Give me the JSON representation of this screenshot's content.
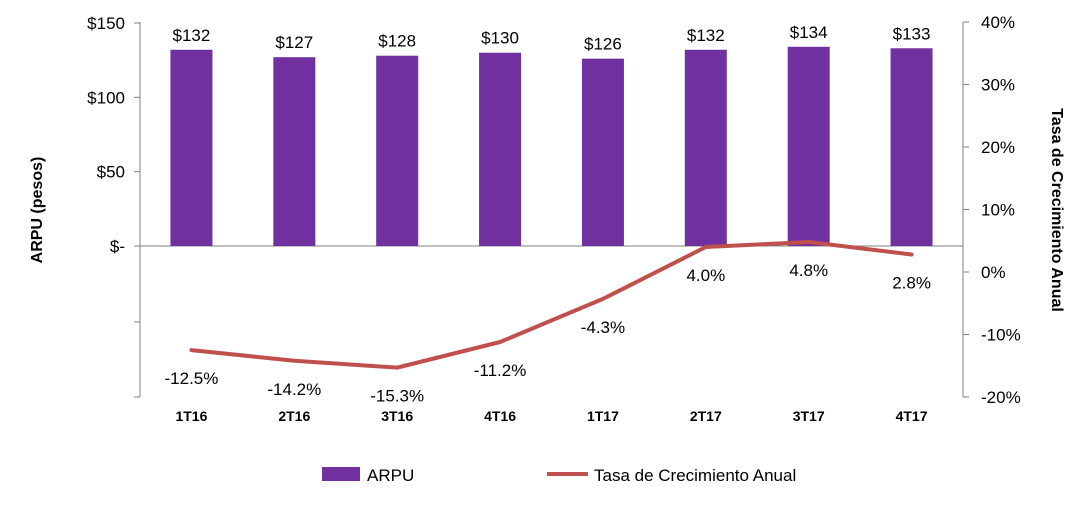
{
  "chart_data": {
    "type": "bar",
    "categories": [
      "1T16",
      "2T16",
      "3T16",
      "4T16",
      "1T17",
      "2T17",
      "3T17",
      "4T17"
    ],
    "series": [
      {
        "name": "ARPU",
        "type": "bar",
        "axis": "left",
        "color": "#7030A0",
        "values": [
          132,
          127,
          128,
          130,
          126,
          132,
          134,
          133
        ],
        "labels": [
          "$132",
          "$127",
          "$128",
          "$130",
          "$126",
          "$132",
          "$134",
          "$133"
        ]
      },
      {
        "name": "Tasa de Crecimiento Anual",
        "type": "line",
        "axis": "right",
        "color": "#C0504D",
        "values": [
          -12.5,
          -14.2,
          -15.3,
          -11.2,
          -4.3,
          4.0,
          4.8,
          2.8
        ],
        "labels": [
          "-12.5%",
          "-14.2%",
          "-15.3%",
          "-11.2%",
          "-4.3%",
          "4.0%",
          "4.8%",
          "2.8%"
        ]
      }
    ],
    "ylabel": "ARPU (pesos)",
    "y2label": "Tasa de Crecimiento Anual",
    "ylim": [
      0,
      150
    ],
    "y2lim": [
      -20,
      40
    ],
    "yticks": [
      150,
      100,
      50,
      0
    ],
    "ytick_labels": [
      "$150",
      "$100",
      "$50",
      "$-"
    ],
    "y2ticks": [
      40,
      30,
      20,
      10,
      0,
      -10,
      -20
    ],
    "y2tick_labels": [
      "40%",
      "30%",
      "20%",
      "10%",
      "0%",
      "-10%",
      "-20%"
    ],
    "grid": false,
    "legend_position": "bottom"
  }
}
